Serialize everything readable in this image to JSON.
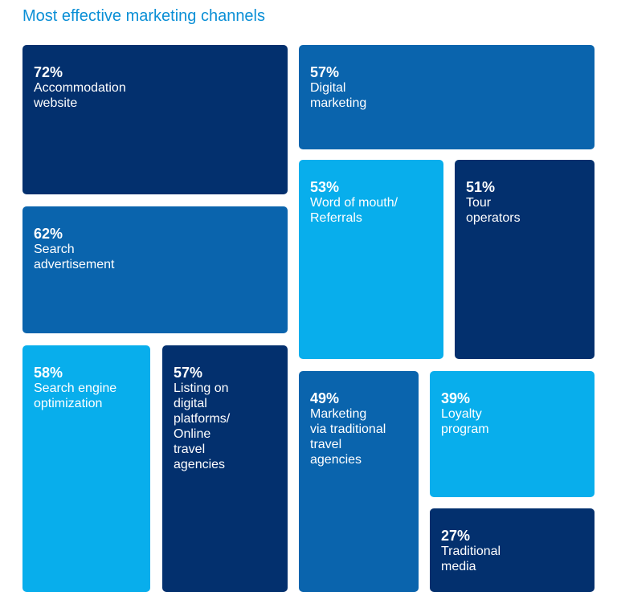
{
  "title": "Most effective marketing channels",
  "colors": {
    "title": "#0a8fd6",
    "dark": "#03306e",
    "mid": "#0a64ad",
    "light": "#08aeec"
  },
  "chart_data": {
    "type": "treemap",
    "title": "Most effective marketing channels",
    "unit": "%",
    "items": [
      {
        "value": 72,
        "value_label": "72%",
        "label": "Accommodation\nwebsite",
        "color": "dark"
      },
      {
        "value": 57,
        "value_label": "57%",
        "label": "Digital\nmarketing",
        "color": "mid"
      },
      {
        "value": 62,
        "value_label": "62%",
        "label": "Search\nadvertisement",
        "color": "mid"
      },
      {
        "value": 53,
        "value_label": "53%",
        "label": "Word of mouth/\nReferrals",
        "color": "light"
      },
      {
        "value": 51,
        "value_label": "51%",
        "label": "Tour\noperators",
        "color": "dark"
      },
      {
        "value": 58,
        "value_label": "58%",
        "label": "Search engine\noptimization",
        "color": "light"
      },
      {
        "value": 57,
        "value_label": "57%",
        "label": "Listing on\ndigital\nplatforms/\nOnline\ntravel\nagencies",
        "color": "dark"
      },
      {
        "value": 49,
        "value_label": "49%",
        "label": "Marketing\nvia traditional\ntravel\nagencies",
        "color": "mid"
      },
      {
        "value": 39,
        "value_label": "39%",
        "label": "Loyalty\nprogram",
        "color": "light"
      },
      {
        "value": 27,
        "value_label": "27%",
        "label": "Traditional\nmedia",
        "color": "dark"
      }
    ]
  }
}
